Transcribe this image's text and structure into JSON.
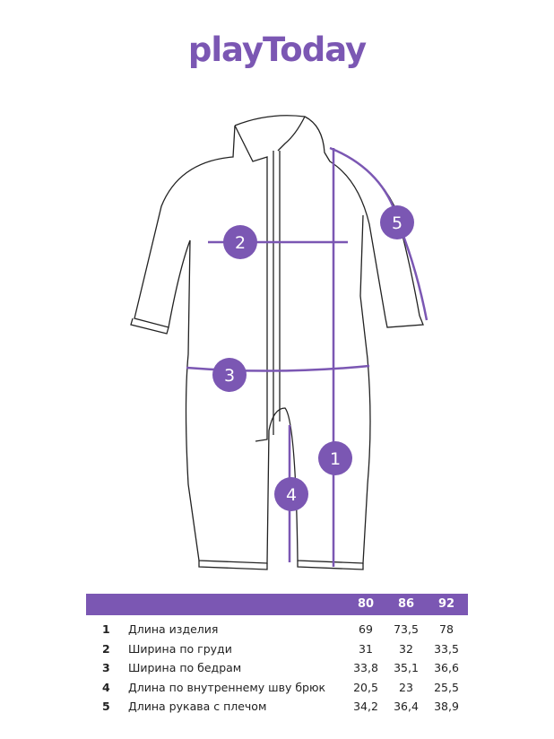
{
  "brand": {
    "logo_text": "playToday",
    "color": "#7b57b3"
  },
  "diagram": {
    "markers": [
      "1",
      "2",
      "3",
      "4",
      "5"
    ]
  },
  "table": {
    "sizes": [
      "80",
      "86",
      "92"
    ],
    "rows": [
      {
        "num": "1",
        "label": "Длина изделия",
        "values": [
          "69",
          "73,5",
          "78"
        ]
      },
      {
        "num": "2",
        "label": "Ширина по груди",
        "values": [
          "31",
          "32",
          "33,5"
        ]
      },
      {
        "num": "3",
        "label": "Ширина по бедрам",
        "values": [
          "33,8",
          "35,1",
          "36,6"
        ]
      },
      {
        "num": "4",
        "label": "Длина по внутреннему шву брюк",
        "values": [
          "20,5",
          "23",
          "25,5"
        ]
      },
      {
        "num": "5",
        "label": "Длина рукава с плечом",
        "values": [
          "34,2",
          "36,4",
          "38,9"
        ]
      }
    ]
  }
}
